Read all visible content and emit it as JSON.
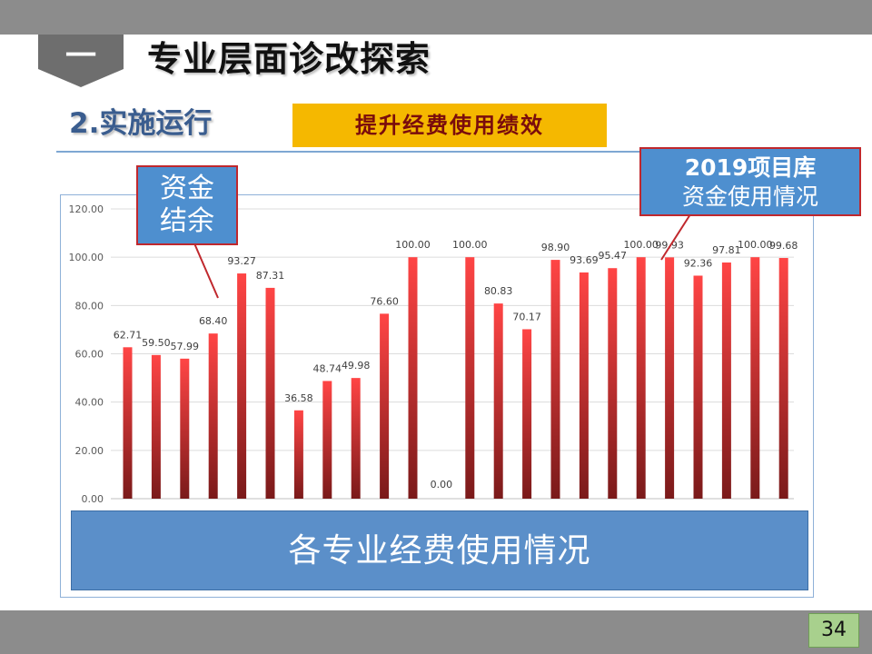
{
  "header": {
    "section_number": "一",
    "title": "专业层面诊改探索",
    "subtitle": "2.实施运行",
    "highlight_label": "提升经费使用绩效"
  },
  "callouts": {
    "funds": {
      "line1": "资金",
      "line2": "结余"
    },
    "project_2019": {
      "line1": "2019项目库",
      "line2": "资金使用情况"
    }
  },
  "overlay_label": "各专业经费使用情况",
  "page_number": "34",
  "colors": {
    "bar_top": "#ff4545",
    "bar_bottom": "#7a1a1a",
    "callout_fill": "#4e8fcf",
    "callout_border": "#c0282d",
    "overlay_fill": "#5b8fc9",
    "highlight_fill": "#f5b800",
    "page_badge": "#a8d08d",
    "bars_gray": "#8c8c8c"
  },
  "chart_data": {
    "type": "bar",
    "values": [
      62.71,
      59.5,
      57.99,
      68.4,
      93.27,
      87.31,
      36.58,
      48.74,
      49.98,
      76.6,
      100.0,
      0.0,
      100.0,
      80.83,
      70.17,
      98.9,
      93.69,
      95.47,
      100.0,
      99.93,
      92.36,
      97.81,
      100.0,
      99.68
    ],
    "data_labels": [
      "62.71",
      "59.50",
      "57.99",
      "68.40",
      "93.27",
      "87.31",
      "36.58",
      "48.74",
      "49.98",
      "76.60",
      "100.00",
      "0.00",
      "100.00",
      "80.83",
      "70.17",
      "98.90",
      "93.69",
      "95.47",
      "100.00",
      "99.93",
      "92.36",
      "97.81",
      "100.00",
      "99.68"
    ],
    "y_ticks": [
      "0.00",
      "20.00",
      "40.00",
      "60.00",
      "80.00",
      "100.00",
      "120.00"
    ],
    "ylim": [
      0,
      120
    ],
    "grid": true,
    "legend": false
  }
}
